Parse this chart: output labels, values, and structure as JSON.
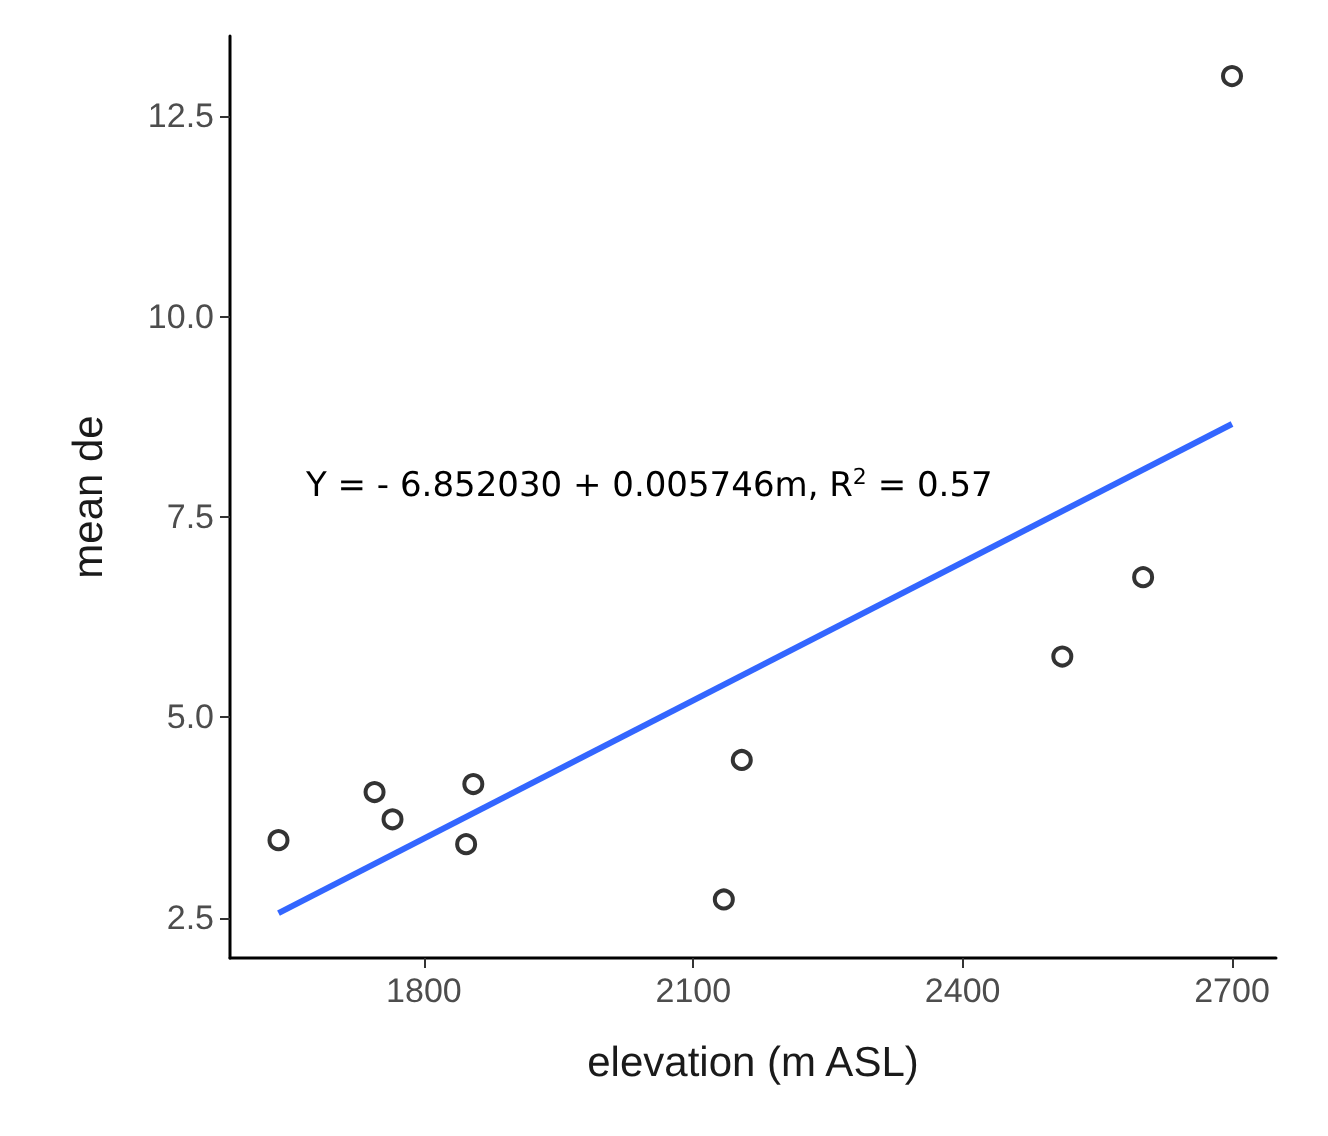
{
  "chart_data": {
    "type": "scatter",
    "xlabel": "elevation (m ASL)",
    "ylabel": "mean de",
    "annotations": [
      "Y = - 6.852030 + 0.005746m, R$^{2}$ = 0.57"
    ],
    "series": [
      {
        "color": "#000000",
        "marker": "circle",
        "x": [
          1638,
          1745,
          1765,
          1847,
          1855,
          2134,
          2154,
          2511,
          2601,
          2700
        ],
        "values": [
          3.47,
          4.07,
          3.73,
          3.42,
          4.17,
          2.73,
          4.47,
          5.76,
          6.75,
          13.0
        ]
      },
      {
        "type": "line",
        "color": "#3366ff",
        "marker": "none",
        "line_style": "solid",
        "x": [
          1638,
          2700
        ],
        "values": [
          2.56,
          8.66
        ]
      }
    ],
    "xlim": [
      1584,
      2749
    ],
    "xticks": [
      1800,
      2100,
      2400,
      2700
    ],
    "ylim": [
      2.0,
      13.5
    ],
    "yticks": [
      2.5,
      {
        "value": 5,
        "label": "5.0"
      },
      7.5,
      {
        "value": 10,
        "label": "10.0"
      },
      12.5
    ],
    "grid": false
  }
}
